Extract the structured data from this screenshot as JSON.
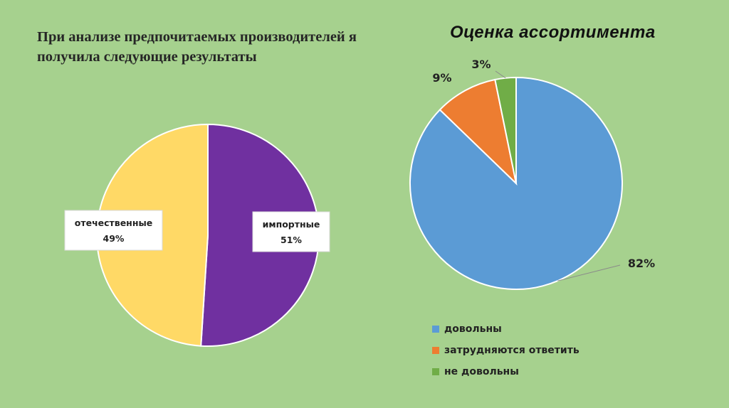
{
  "intro_text": "При анализе предпочитаемых производителей я получила следующие результаты",
  "chart_data": [
    {
      "type": "pie",
      "title": "",
      "slices": [
        {
          "name": "импортные",
          "value": 51,
          "label": "51%",
          "color": "#7030a0"
        },
        {
          "name": "отечественные",
          "value": 49,
          "label": "49%",
          "color": "#ffd966"
        }
      ]
    },
    {
      "type": "pie",
      "title": "Оценка ассортимента",
      "slices": [
        {
          "name": "довольны",
          "value": 82,
          "label": "82%",
          "color": "#5b9bd5"
        },
        {
          "name": "затрудняются ответить",
          "value": 9,
          "label": "9%",
          "color": "#ed7d31"
        },
        {
          "name": "не довольны",
          "value": 3,
          "label": "3%",
          "color": "#70ad47"
        }
      ],
      "legend_position": "bottom"
    }
  ]
}
